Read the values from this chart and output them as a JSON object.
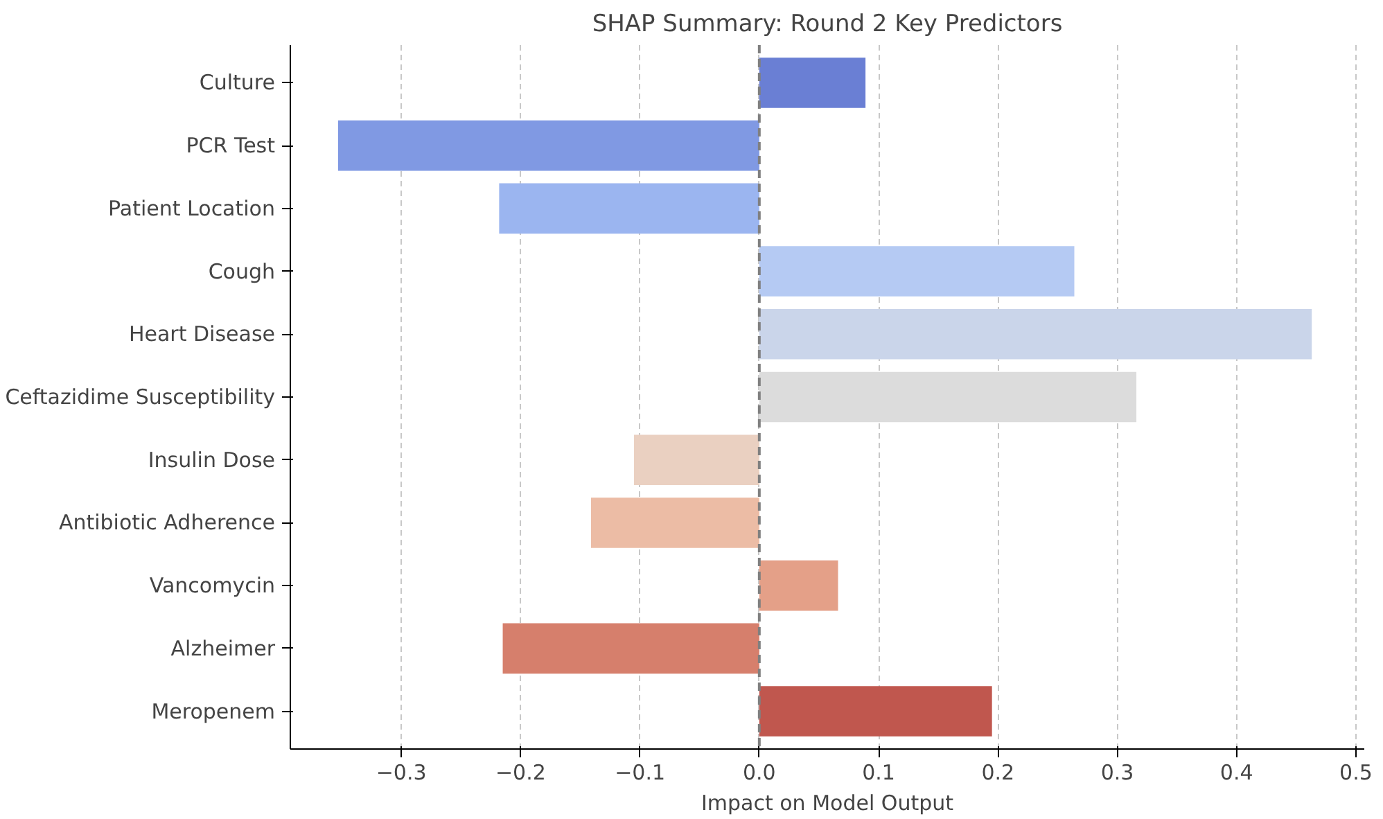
{
  "chart_data": {
    "type": "bar",
    "orientation": "horizontal",
    "title": "SHAP Summary: Round 2 Key Predictors",
    "xlabel": "Impact on Model Output",
    "categories": [
      "Culture",
      "PCR Test",
      "Patient Location",
      "Cough",
      "Heart Disease",
      "Ceftazidime Susceptibility",
      "Insulin Dose",
      "Antibiotic Adherence",
      "Vancomycin",
      "Alzheimer",
      "Meropenem"
    ],
    "values": [
      0.089,
      -0.353,
      -0.218,
      0.264,
      0.463,
      0.316,
      -0.105,
      -0.141,
      0.066,
      -0.215,
      0.195
    ],
    "colors": [
      "#6a7fd4",
      "#8099e3",
      "#9bb5f0",
      "#b5caf3",
      "#cad5ea",
      "#dcdcdc",
      "#ead0c1",
      "#ecbca5",
      "#e4a088",
      "#d67f6c",
      "#c0574e"
    ],
    "xlim": [
      -0.393,
      0.507
    ],
    "xticks": [
      {
        "value": -0.3,
        "label": "−0.3"
      },
      {
        "value": -0.2,
        "label": "−0.2"
      },
      {
        "value": -0.1,
        "label": "−0.1"
      },
      {
        "value": 0,
        "label": "0.0"
      },
      {
        "value": 0.1,
        "label": "0.1"
      },
      {
        "value": 0.2,
        "label": "0.2"
      },
      {
        "value": 0.3,
        "label": "0.3"
      },
      {
        "value": 0.4,
        "label": "0.4"
      },
      {
        "value": 0.5,
        "label": "0.5"
      }
    ],
    "grid": "x",
    "ref_lines": [
      {
        "axis": "x",
        "value": 0,
        "color": "#808080",
        "line_style": "dashed"
      }
    ]
  }
}
